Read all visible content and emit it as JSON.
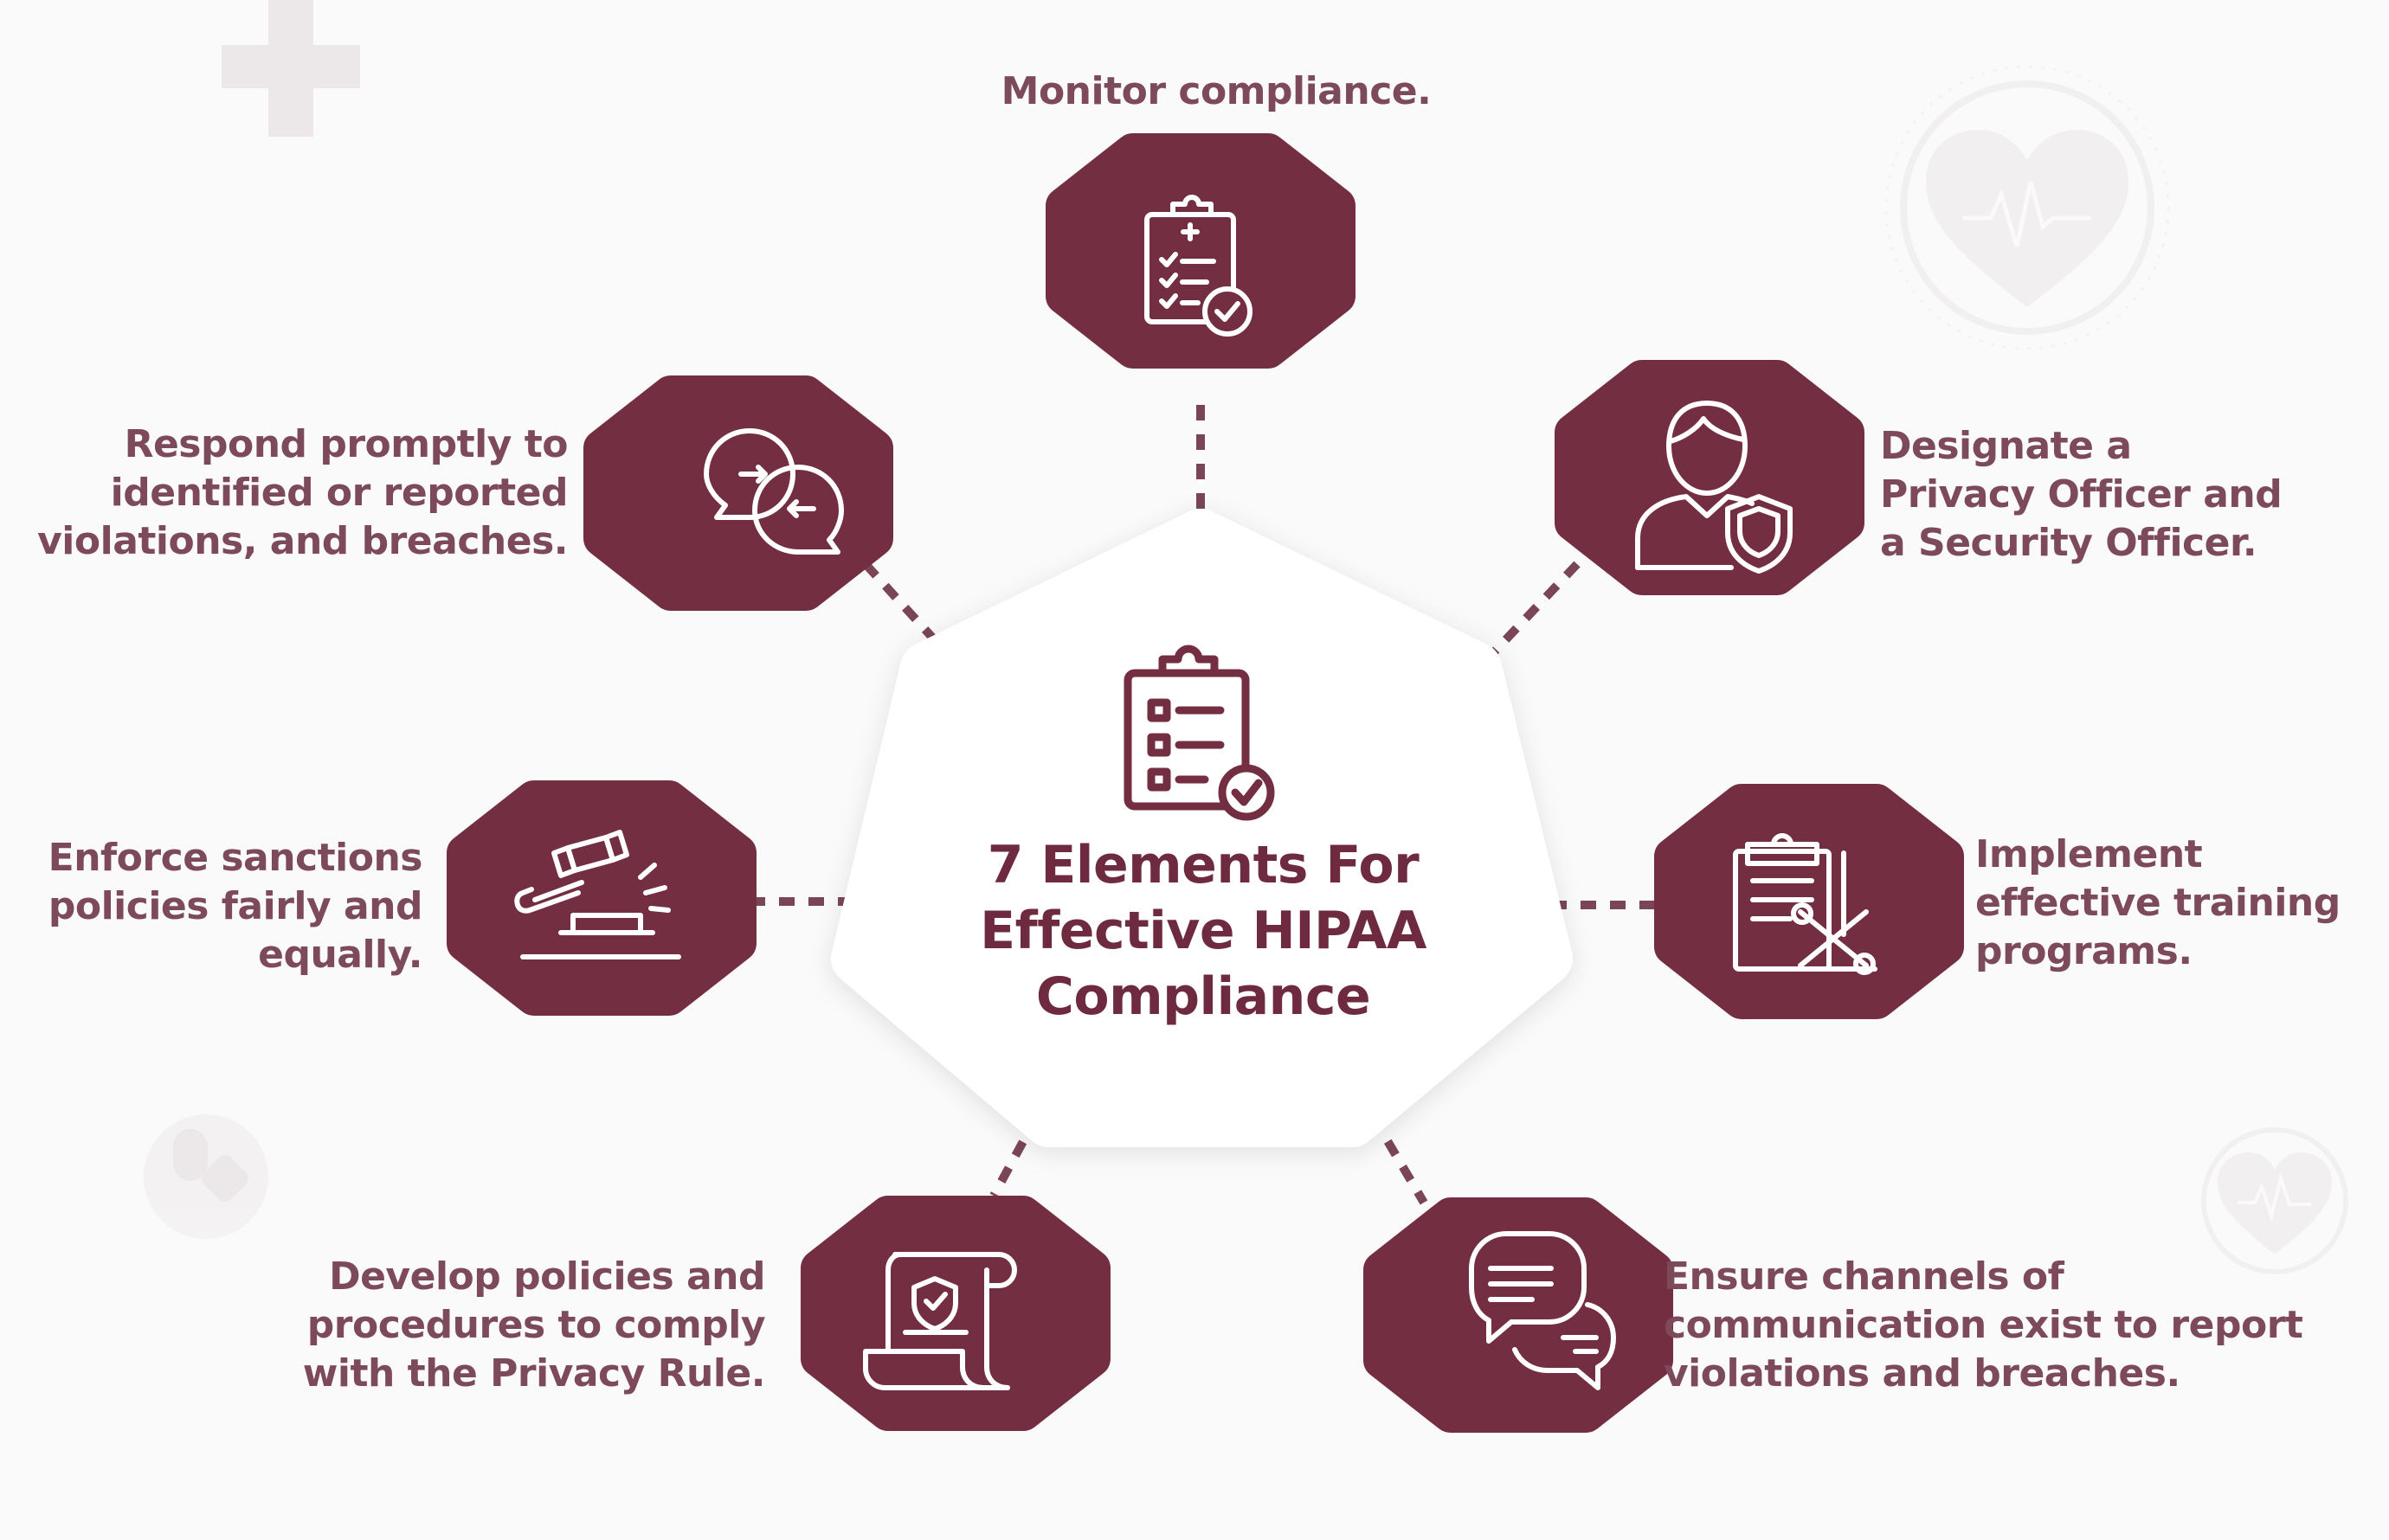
{
  "colors": {
    "hexagon": "#732e42",
    "label_text": "#7d4a5c",
    "title_text": "#6e2b40",
    "connector": "#7a4656",
    "background": "#fbfafa",
    "center_fill": "#ffffff",
    "decor": "#ece8ea"
  },
  "center": {
    "icon": "clipboard-checklist-icon",
    "title_lines": [
      "7 Elements For",
      "Effective HIPAA",
      "Compliance"
    ]
  },
  "elements": [
    {
      "id": "monitor",
      "icon": "clipboard-medical-check-icon",
      "lines": [
        "Monitor compliance."
      ]
    },
    {
      "id": "designate",
      "icon": "officer-shield-icon",
      "lines": [
        "Designate a",
        "Privacy Officer and",
        "a Security Officer."
      ]
    },
    {
      "id": "training",
      "icon": "clipboard-tools-icon",
      "lines": [
        "Implement",
        "effective training",
        "programs."
      ]
    },
    {
      "id": "channels",
      "icon": "speech-bubbles-icon",
      "lines": [
        "Ensure channels of",
        "communication exist to report",
        "violations and breaches."
      ]
    },
    {
      "id": "policies",
      "icon": "policy-scroll-shield-icon",
      "lines": [
        "Develop policies and",
        "procedures to comply",
        "with the Privacy Rule."
      ]
    },
    {
      "id": "sanctions",
      "icon": "gavel-icon",
      "lines": [
        "Enforce sanctions",
        "policies fairly and",
        "equally."
      ]
    },
    {
      "id": "respond",
      "icon": "exchange-chat-icon",
      "lines": [
        "Respond promptly to",
        "identified or reported",
        "violations, and breaches."
      ]
    }
  ],
  "decorations": [
    "medical-cross-icon",
    "heart-pulse-icon",
    "heart-pulse-small-icon",
    "pill-badge-icon"
  ]
}
